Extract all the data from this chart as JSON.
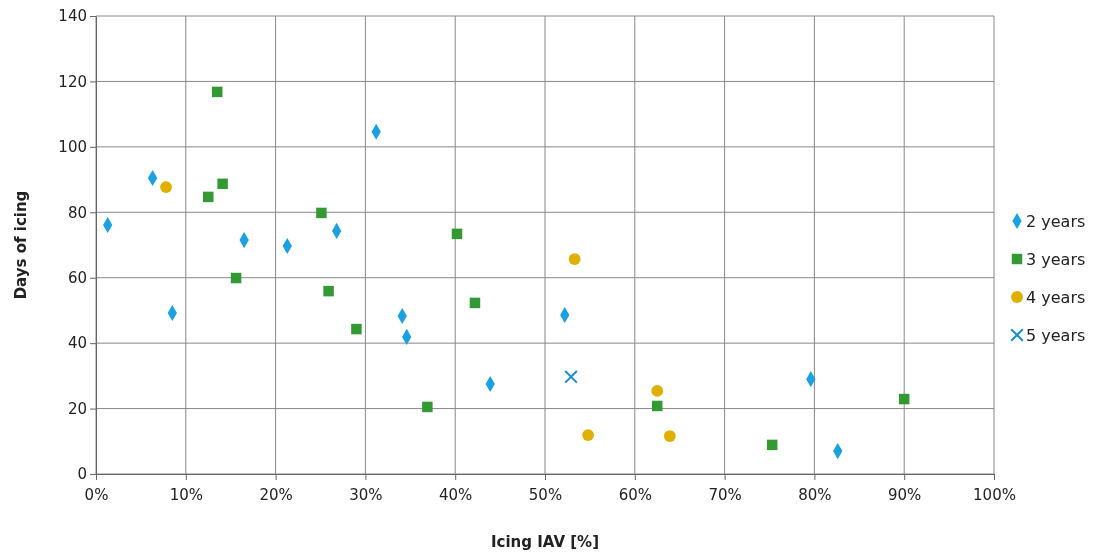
{
  "chart_data": {
    "type": "scatter",
    "xlabel": "Icing IAV [%]",
    "ylabel": "Days of icing",
    "xlim": [
      0,
      100
    ],
    "ylim": [
      0,
      140
    ],
    "xticks": [
      {
        "value": 0,
        "label": "0%"
      },
      {
        "value": 10,
        "label": "10%"
      },
      {
        "value": 20,
        "label": "20%"
      },
      {
        "value": 30,
        "label": "30%"
      },
      {
        "value": 40,
        "label": "40%"
      },
      {
        "value": 50,
        "label": "50%"
      },
      {
        "value": 60,
        "label": "60%"
      },
      {
        "value": 70,
        "label": "70%"
      },
      {
        "value": 80,
        "label": "80%"
      },
      {
        "value": 90,
        "label": "90%"
      },
      {
        "value": 100,
        "label": "100%"
      }
    ],
    "yticks": [
      0,
      20,
      40,
      60,
      80,
      100,
      120,
      140
    ],
    "grid": true,
    "legend": "right",
    "series": [
      {
        "name": "2 years",
        "color": "#1ba1e2",
        "marker": "diamond",
        "x": [
          1.3,
          6.3,
          8.5,
          16.5,
          21.3,
          26.8,
          31.2,
          34.1,
          34.6,
          43.9,
          52.2,
          79.6,
          82.6
        ],
        "values": [
          76.1,
          90.5,
          49.2,
          71.5,
          69.7,
          74.3,
          104.6,
          48.3,
          41.9,
          27.5,
          48.6,
          29.0,
          7.0
        ]
      },
      {
        "name": "3 years",
        "color": "#339933",
        "marker": "square",
        "x": [
          13.5,
          12.5,
          14.1,
          15.6,
          25.1,
          25.9,
          29.0,
          36.9,
          40.2,
          42.2,
          62.5,
          75.3,
          90.0
        ],
        "values": [
          116.8,
          84.7,
          88.7,
          59.9,
          79.8,
          55.9,
          44.3,
          20.5,
          73.4,
          52.3,
          20.8,
          8.9,
          22.9
        ]
      },
      {
        "name": "4 years",
        "color": "#e0b000",
        "marker": "circle",
        "x": [
          7.8,
          53.3,
          54.8,
          62.5,
          63.9
        ],
        "values": [
          87.7,
          65.7,
          11.9,
          25.4,
          11.6
        ]
      },
      {
        "name": "5 years",
        "color": "#1a8fc9",
        "marker": "cross",
        "x": [
          52.9
        ],
        "values": [
          29.7
        ]
      }
    ]
  }
}
